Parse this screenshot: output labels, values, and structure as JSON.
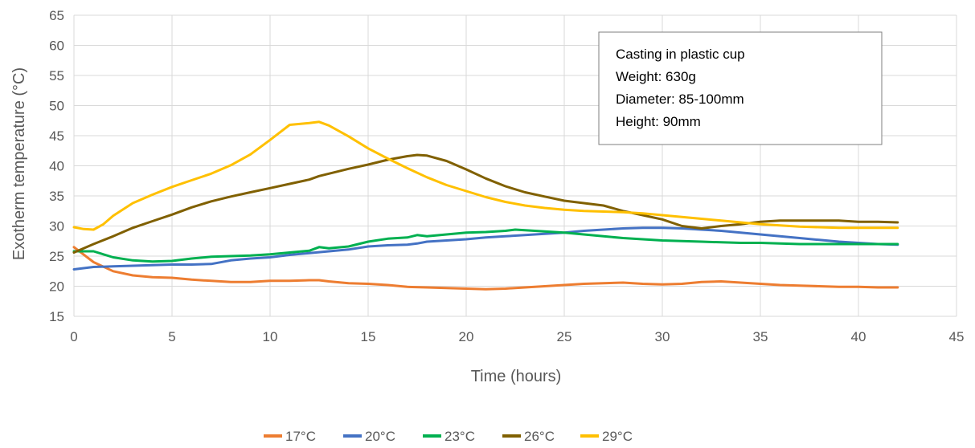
{
  "chart_data": {
    "type": "line",
    "xlabel": "Time (hours)",
    "ylabel": "Exotherm temperature (°C)",
    "xlim": [
      0,
      45
    ],
    "ylim": [
      15,
      65
    ],
    "xticks": [
      0,
      5,
      10,
      15,
      20,
      25,
      30,
      35,
      40,
      45
    ],
    "yticks": [
      15,
      20,
      25,
      30,
      35,
      40,
      45,
      50,
      55,
      60,
      65
    ],
    "grid": true,
    "legend_position": "bottom",
    "annotation": {
      "lines": [
        "Casting in plastic cup",
        "Weight: 630g",
        "Diameter: 85-100mm",
        "Height: 90mm"
      ]
    },
    "series": [
      {
        "name": "17°C",
        "color": "#ED7D31",
        "points": [
          [
            0,
            26.5
          ],
          [
            1,
            24
          ],
          [
            2,
            22.5
          ],
          [
            3,
            21.8
          ],
          [
            4,
            21.5
          ],
          [
            5,
            21.4
          ],
          [
            6,
            21.1
          ],
          [
            7,
            20.9
          ],
          [
            8,
            20.7
          ],
          [
            9,
            20.7
          ],
          [
            10,
            20.9
          ],
          [
            11,
            20.9
          ],
          [
            12,
            21.0
          ],
          [
            12.5,
            21.0
          ],
          [
            13,
            20.8
          ],
          [
            14,
            20.5
          ],
          [
            15,
            20.4
          ],
          [
            16,
            20.2
          ],
          [
            17,
            19.9
          ],
          [
            18,
            19.8
          ],
          [
            19,
            19.7
          ],
          [
            20,
            19.6
          ],
          [
            21,
            19.5
          ],
          [
            22,
            19.6
          ],
          [
            23,
            19.8
          ],
          [
            24,
            20.0
          ],
          [
            25,
            20.2
          ],
          [
            26,
            20.4
          ],
          [
            27,
            20.5
          ],
          [
            28,
            20.6
          ],
          [
            29,
            20.4
          ],
          [
            30,
            20.3
          ],
          [
            31,
            20.4
          ],
          [
            32,
            20.7
          ],
          [
            33,
            20.8
          ],
          [
            34,
            20.6
          ],
          [
            35,
            20.4
          ],
          [
            36,
            20.2
          ],
          [
            37,
            20.1
          ],
          [
            38,
            20.0
          ],
          [
            39,
            19.9
          ],
          [
            40,
            19.9
          ],
          [
            41,
            19.8
          ],
          [
            42,
            19.8
          ]
        ]
      },
      {
        "name": "20°C",
        "color": "#4472C4",
        "points": [
          [
            0,
            22.8
          ],
          [
            1,
            23.2
          ],
          [
            2,
            23.3
          ],
          [
            3,
            23.4
          ],
          [
            4,
            23.5
          ],
          [
            5,
            23.6
          ],
          [
            6,
            23.6
          ],
          [
            7,
            23.7
          ],
          [
            8,
            24.3
          ],
          [
            9,
            24.6
          ],
          [
            10,
            24.8
          ],
          [
            11,
            25.2
          ],
          [
            12,
            25.5
          ],
          [
            13,
            25.8
          ],
          [
            14,
            26.1
          ],
          [
            15,
            26.6
          ],
          [
            16,
            26.8
          ],
          [
            17,
            26.9
          ],
          [
            17.5,
            27.1
          ],
          [
            18,
            27.4
          ],
          [
            19,
            27.6
          ],
          [
            20,
            27.8
          ],
          [
            21,
            28.1
          ],
          [
            22,
            28.3
          ],
          [
            23,
            28.5
          ],
          [
            24,
            28.7
          ],
          [
            25,
            28.9
          ],
          [
            26,
            29.2
          ],
          [
            27,
            29.4
          ],
          [
            28,
            29.6
          ],
          [
            29,
            29.7
          ],
          [
            30,
            29.7
          ],
          [
            31,
            29.6
          ],
          [
            32,
            29.4
          ],
          [
            33,
            29.2
          ],
          [
            34,
            28.9
          ],
          [
            35,
            28.6
          ],
          [
            36,
            28.3
          ],
          [
            37,
            28.0
          ],
          [
            38,
            27.7
          ],
          [
            39,
            27.4
          ],
          [
            40,
            27.2
          ],
          [
            41,
            27.0
          ],
          [
            42,
            26.9
          ]
        ]
      },
      {
        "name": "23°C",
        "color": "#00B050",
        "points": [
          [
            0,
            25.8
          ],
          [
            1,
            25.8
          ],
          [
            2,
            24.8
          ],
          [
            3,
            24.3
          ],
          [
            4,
            24.1
          ],
          [
            5,
            24.2
          ],
          [
            6,
            24.6
          ],
          [
            7,
            24.9
          ],
          [
            8,
            25.0
          ],
          [
            9,
            25.1
          ],
          [
            10,
            25.3
          ],
          [
            11,
            25.6
          ],
          [
            12,
            25.9
          ],
          [
            12.5,
            26.5
          ],
          [
            13,
            26.3
          ],
          [
            14,
            26.6
          ],
          [
            15,
            27.4
          ],
          [
            16,
            27.9
          ],
          [
            17,
            28.1
          ],
          [
            17.5,
            28.5
          ],
          [
            18,
            28.3
          ],
          [
            19,
            28.6
          ],
          [
            20,
            28.9
          ],
          [
            21,
            29.0
          ],
          [
            22,
            29.2
          ],
          [
            22.5,
            29.4
          ],
          [
            23,
            29.3
          ],
          [
            24,
            29.1
          ],
          [
            25,
            28.9
          ],
          [
            26,
            28.6
          ],
          [
            27,
            28.3
          ],
          [
            28,
            28.0
          ],
          [
            29,
            27.8
          ],
          [
            30,
            27.6
          ],
          [
            31,
            27.5
          ],
          [
            32,
            27.4
          ],
          [
            33,
            27.3
          ],
          [
            34,
            27.2
          ],
          [
            35,
            27.2
          ],
          [
            36,
            27.1
          ],
          [
            37,
            27.0
          ],
          [
            38,
            27.0
          ],
          [
            39,
            27.0
          ],
          [
            40,
            27.0
          ],
          [
            41,
            27.0
          ],
          [
            42,
            27.0
          ]
        ]
      },
      {
        "name": "26°C",
        "color": "#806000",
        "points": [
          [
            0,
            25.6
          ],
          [
            1,
            27.0
          ],
          [
            2,
            28.3
          ],
          [
            3,
            29.7
          ],
          [
            4,
            30.8
          ],
          [
            5,
            31.9
          ],
          [
            6,
            33.1
          ],
          [
            7,
            34.1
          ],
          [
            8,
            34.9
          ],
          [
            9,
            35.6
          ],
          [
            10,
            36.3
          ],
          [
            11,
            37.0
          ],
          [
            12,
            37.7
          ],
          [
            12.5,
            38.3
          ],
          [
            13,
            38.7
          ],
          [
            14,
            39.5
          ],
          [
            15,
            40.2
          ],
          [
            16,
            41.0
          ],
          [
            17,
            41.6
          ],
          [
            17.5,
            41.8
          ],
          [
            18,
            41.7
          ],
          [
            19,
            40.8
          ],
          [
            20,
            39.4
          ],
          [
            21,
            37.9
          ],
          [
            22,
            36.6
          ],
          [
            23,
            35.6
          ],
          [
            24,
            34.9
          ],
          [
            25,
            34.2
          ],
          [
            26,
            33.8
          ],
          [
            27,
            33.4
          ],
          [
            28,
            32.5
          ],
          [
            29,
            31.8
          ],
          [
            30,
            31.1
          ],
          [
            31,
            30.0
          ],
          [
            32,
            29.6
          ],
          [
            33,
            30.0
          ],
          [
            34,
            30.3
          ],
          [
            35,
            30.7
          ],
          [
            36,
            30.9
          ],
          [
            37,
            30.9
          ],
          [
            38,
            30.9
          ],
          [
            39,
            30.9
          ],
          [
            40,
            30.7
          ],
          [
            41,
            30.7
          ],
          [
            42,
            30.6
          ]
        ]
      },
      {
        "name": "29°C",
        "color": "#FFC000",
        "points": [
          [
            0,
            29.8
          ],
          [
            0.5,
            29.5
          ],
          [
            1,
            29.4
          ],
          [
            1.5,
            30.3
          ],
          [
            2,
            31.7
          ],
          [
            3,
            33.8
          ],
          [
            4,
            35.2
          ],
          [
            5,
            36.5
          ],
          [
            6,
            37.6
          ],
          [
            7,
            38.7
          ],
          [
            8,
            40.1
          ],
          [
            9,
            41.9
          ],
          [
            10,
            44.3
          ],
          [
            11,
            46.8
          ],
          [
            12,
            47.1
          ],
          [
            12.5,
            47.3
          ],
          [
            13,
            46.7
          ],
          [
            14,
            44.9
          ],
          [
            15,
            42.9
          ],
          [
            16,
            41.2
          ],
          [
            17,
            39.6
          ],
          [
            18,
            38.1
          ],
          [
            19,
            36.8
          ],
          [
            20,
            35.8
          ],
          [
            21,
            34.8
          ],
          [
            22,
            34.0
          ],
          [
            23,
            33.4
          ],
          [
            24,
            33.0
          ],
          [
            25,
            32.7
          ],
          [
            26,
            32.5
          ],
          [
            27,
            32.4
          ],
          [
            28,
            32.3
          ],
          [
            29,
            32.1
          ],
          [
            30,
            31.8
          ],
          [
            31,
            31.5
          ],
          [
            32,
            31.2
          ],
          [
            33,
            30.9
          ],
          [
            34,
            30.6
          ],
          [
            35,
            30.3
          ],
          [
            36,
            30.1
          ],
          [
            37,
            29.9
          ],
          [
            38,
            29.8
          ],
          [
            39,
            29.7
          ],
          [
            40,
            29.7
          ],
          [
            41,
            29.7
          ],
          [
            42,
            29.7
          ]
        ]
      }
    ]
  }
}
